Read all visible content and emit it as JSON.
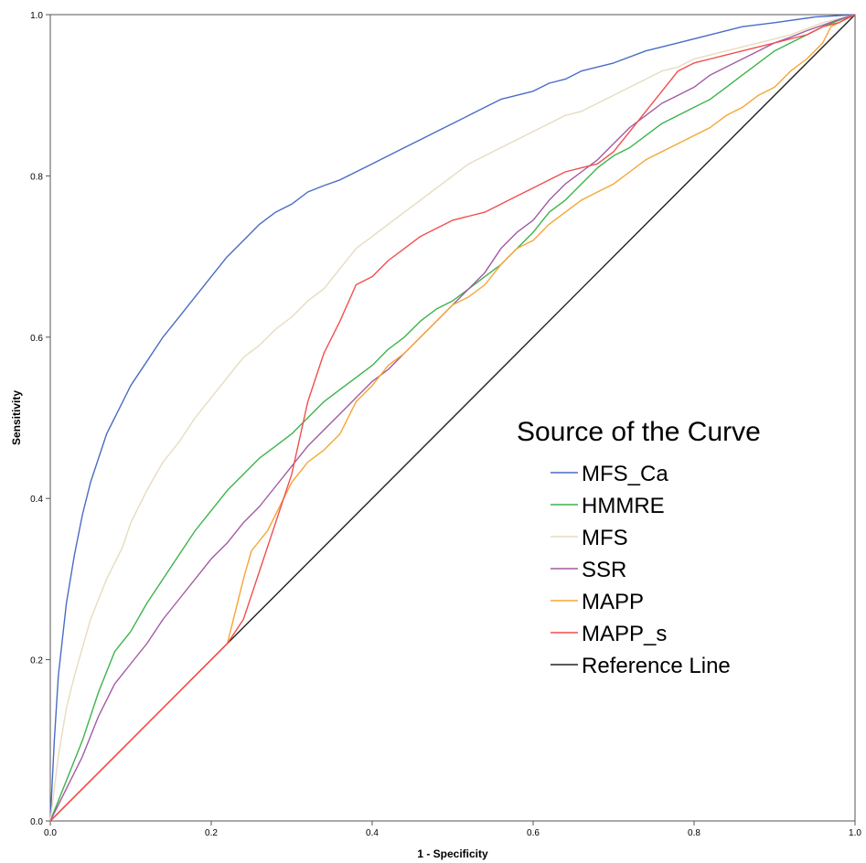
{
  "chart_data": {
    "type": "line",
    "title": "",
    "xlabel": "1 - Specificity",
    "ylabel": "Sensitivity",
    "xlim": [
      0,
      1
    ],
    "ylim": [
      0,
      1
    ],
    "xticks": [
      "0.0",
      "0.2",
      "0.4",
      "0.6",
      "0.8",
      "1.0"
    ],
    "yticks": [
      "0.0",
      "0.2",
      "0.4",
      "0.6",
      "0.8",
      "1.0"
    ],
    "grid": false,
    "legend": {
      "title": "Source of the Curve",
      "placement": "right"
    },
    "series": [
      {
        "name": "MFS_Ca",
        "color": "#4a6cc7",
        "points": [
          [
            0,
            0
          ],
          [
            0.005,
            0.1
          ],
          [
            0.01,
            0.18
          ],
          [
            0.02,
            0.27
          ],
          [
            0.03,
            0.33
          ],
          [
            0.04,
            0.38
          ],
          [
            0.05,
            0.42
          ],
          [
            0.06,
            0.45
          ],
          [
            0.07,
            0.48
          ],
          [
            0.08,
            0.5
          ],
          [
            0.09,
            0.52
          ],
          [
            0.1,
            0.54
          ],
          [
            0.12,
            0.57
          ],
          [
            0.14,
            0.6
          ],
          [
            0.16,
            0.625
          ],
          [
            0.18,
            0.65
          ],
          [
            0.2,
            0.675
          ],
          [
            0.22,
            0.7
          ],
          [
            0.24,
            0.72
          ],
          [
            0.26,
            0.74
          ],
          [
            0.28,
            0.755
          ],
          [
            0.3,
            0.765
          ],
          [
            0.32,
            0.78
          ],
          [
            0.34,
            0.788
          ],
          [
            0.36,
            0.795
          ],
          [
            0.38,
            0.805
          ],
          [
            0.4,
            0.815
          ],
          [
            0.42,
            0.825
          ],
          [
            0.44,
            0.835
          ],
          [
            0.46,
            0.845
          ],
          [
            0.48,
            0.855
          ],
          [
            0.5,
            0.865
          ],
          [
            0.52,
            0.875
          ],
          [
            0.54,
            0.885
          ],
          [
            0.56,
            0.895
          ],
          [
            0.58,
            0.9
          ],
          [
            0.6,
            0.905
          ],
          [
            0.62,
            0.915
          ],
          [
            0.64,
            0.92
          ],
          [
            0.66,
            0.93
          ],
          [
            0.68,
            0.935
          ],
          [
            0.7,
            0.94
          ],
          [
            0.74,
            0.955
          ],
          [
            0.78,
            0.965
          ],
          [
            0.82,
            0.975
          ],
          [
            0.86,
            0.985
          ],
          [
            0.9,
            0.99
          ],
          [
            0.95,
            0.997
          ],
          [
            1,
            1
          ]
        ]
      },
      {
        "name": "HMMRE",
        "color": "#3cb44b",
        "points": [
          [
            0,
            0
          ],
          [
            0.02,
            0.05
          ],
          [
            0.04,
            0.1
          ],
          [
            0.06,
            0.16
          ],
          [
            0.08,
            0.21
          ],
          [
            0.1,
            0.235
          ],
          [
            0.12,
            0.27
          ],
          [
            0.14,
            0.3
          ],
          [
            0.16,
            0.33
          ],
          [
            0.18,
            0.36
          ],
          [
            0.2,
            0.385
          ],
          [
            0.22,
            0.41
          ],
          [
            0.24,
            0.43
          ],
          [
            0.26,
            0.45
          ],
          [
            0.28,
            0.465
          ],
          [
            0.3,
            0.48
          ],
          [
            0.32,
            0.5
          ],
          [
            0.34,
            0.52
          ],
          [
            0.36,
            0.535
          ],
          [
            0.38,
            0.55
          ],
          [
            0.4,
            0.565
          ],
          [
            0.42,
            0.585
          ],
          [
            0.44,
            0.6
          ],
          [
            0.46,
            0.62
          ],
          [
            0.48,
            0.635
          ],
          [
            0.5,
            0.645
          ],
          [
            0.52,
            0.66
          ],
          [
            0.54,
            0.675
          ],
          [
            0.56,
            0.69
          ],
          [
            0.58,
            0.71
          ],
          [
            0.6,
            0.73
          ],
          [
            0.62,
            0.755
          ],
          [
            0.64,
            0.77
          ],
          [
            0.66,
            0.79
          ],
          [
            0.68,
            0.81
          ],
          [
            0.7,
            0.825
          ],
          [
            0.72,
            0.835
          ],
          [
            0.74,
            0.85
          ],
          [
            0.76,
            0.865
          ],
          [
            0.78,
            0.875
          ],
          [
            0.8,
            0.885
          ],
          [
            0.82,
            0.895
          ],
          [
            0.84,
            0.91
          ],
          [
            0.86,
            0.925
          ],
          [
            0.88,
            0.94
          ],
          [
            0.9,
            0.955
          ],
          [
            0.92,
            0.965
          ],
          [
            0.94,
            0.975
          ],
          [
            0.96,
            0.985
          ],
          [
            0.98,
            0.993
          ],
          [
            1,
            1
          ]
        ]
      },
      {
        "name": "MFS",
        "color": "#e6dcc0",
        "points": [
          [
            0,
            0
          ],
          [
            0.01,
            0.08
          ],
          [
            0.02,
            0.14
          ],
          [
            0.03,
            0.18
          ],
          [
            0.05,
            0.25
          ],
          [
            0.07,
            0.3
          ],
          [
            0.09,
            0.34
          ],
          [
            0.1,
            0.37
          ],
          [
            0.12,
            0.41
          ],
          [
            0.14,
            0.445
          ],
          [
            0.16,
            0.47
          ],
          [
            0.18,
            0.5
          ],
          [
            0.2,
            0.525
          ],
          [
            0.22,
            0.55
          ],
          [
            0.24,
            0.575
          ],
          [
            0.26,
            0.59
          ],
          [
            0.28,
            0.61
          ],
          [
            0.3,
            0.625
          ],
          [
            0.32,
            0.645
          ],
          [
            0.34,
            0.66
          ],
          [
            0.36,
            0.685
          ],
          [
            0.38,
            0.71
          ],
          [
            0.4,
            0.725
          ],
          [
            0.42,
            0.74
          ],
          [
            0.44,
            0.755
          ],
          [
            0.46,
            0.77
          ],
          [
            0.48,
            0.785
          ],
          [
            0.5,
            0.8
          ],
          [
            0.52,
            0.815
          ],
          [
            0.54,
            0.825
          ],
          [
            0.56,
            0.835
          ],
          [
            0.58,
            0.845
          ],
          [
            0.6,
            0.855
          ],
          [
            0.62,
            0.865
          ],
          [
            0.64,
            0.875
          ],
          [
            0.66,
            0.88
          ],
          [
            0.68,
            0.89
          ],
          [
            0.7,
            0.9
          ],
          [
            0.72,
            0.91
          ],
          [
            0.74,
            0.92
          ],
          [
            0.76,
            0.93
          ],
          [
            0.78,
            0.935
          ],
          [
            0.8,
            0.945
          ],
          [
            0.84,
            0.955
          ],
          [
            0.88,
            0.965
          ],
          [
            0.92,
            0.975
          ],
          [
            0.96,
            0.99
          ],
          [
            1,
            1
          ]
        ]
      },
      {
        "name": "SSR",
        "color": "#a35ba3",
        "points": [
          [
            0,
            0
          ],
          [
            0.02,
            0.04
          ],
          [
            0.04,
            0.08
          ],
          [
            0.06,
            0.13
          ],
          [
            0.08,
            0.17
          ],
          [
            0.1,
            0.195
          ],
          [
            0.12,
            0.22
          ],
          [
            0.14,
            0.25
          ],
          [
            0.16,
            0.275
          ],
          [
            0.18,
            0.3
          ],
          [
            0.2,
            0.325
          ],
          [
            0.22,
            0.345
          ],
          [
            0.24,
            0.37
          ],
          [
            0.26,
            0.39
          ],
          [
            0.28,
            0.415
          ],
          [
            0.3,
            0.44
          ],
          [
            0.32,
            0.465
          ],
          [
            0.34,
            0.485
          ],
          [
            0.36,
            0.505
          ],
          [
            0.38,
            0.525
          ],
          [
            0.4,
            0.545
          ],
          [
            0.42,
            0.56
          ],
          [
            0.44,
            0.58
          ],
          [
            0.46,
            0.6
          ],
          [
            0.48,
            0.62
          ],
          [
            0.5,
            0.64
          ],
          [
            0.52,
            0.66
          ],
          [
            0.54,
            0.68
          ],
          [
            0.56,
            0.71
          ],
          [
            0.58,
            0.73
          ],
          [
            0.6,
            0.745
          ],
          [
            0.62,
            0.77
          ],
          [
            0.64,
            0.79
          ],
          [
            0.66,
            0.805
          ],
          [
            0.68,
            0.82
          ],
          [
            0.7,
            0.84
          ],
          [
            0.72,
            0.86
          ],
          [
            0.74,
            0.875
          ],
          [
            0.76,
            0.89
          ],
          [
            0.78,
            0.9
          ],
          [
            0.8,
            0.91
          ],
          [
            0.82,
            0.925
          ],
          [
            0.84,
            0.935
          ],
          [
            0.86,
            0.945
          ],
          [
            0.88,
            0.955
          ],
          [
            0.9,
            0.965
          ],
          [
            0.92,
            0.972
          ],
          [
            0.94,
            0.98
          ],
          [
            0.96,
            0.987
          ],
          [
            0.98,
            0.994
          ],
          [
            1,
            1
          ]
        ]
      },
      {
        "name": "MAPP",
        "color": "#f7a533",
        "points": [
          [
            0,
            0
          ],
          [
            0.22,
            0.22
          ],
          [
            0.23,
            0.26
          ],
          [
            0.24,
            0.3
          ],
          [
            0.25,
            0.335
          ],
          [
            0.27,
            0.36
          ],
          [
            0.3,
            0.42
          ],
          [
            0.32,
            0.445
          ],
          [
            0.34,
            0.46
          ],
          [
            0.36,
            0.48
          ],
          [
            0.38,
            0.52
          ],
          [
            0.4,
            0.54
          ],
          [
            0.42,
            0.565
          ],
          [
            0.44,
            0.58
          ],
          [
            0.46,
            0.6
          ],
          [
            0.48,
            0.62
          ],
          [
            0.5,
            0.64
          ],
          [
            0.52,
            0.65
          ],
          [
            0.54,
            0.665
          ],
          [
            0.56,
            0.69
          ],
          [
            0.58,
            0.71
          ],
          [
            0.6,
            0.72
          ],
          [
            0.62,
            0.74
          ],
          [
            0.64,
            0.755
          ],
          [
            0.66,
            0.77
          ],
          [
            0.68,
            0.78
          ],
          [
            0.7,
            0.79
          ],
          [
            0.72,
            0.805
          ],
          [
            0.74,
            0.82
          ],
          [
            0.76,
            0.83
          ],
          [
            0.78,
            0.84
          ],
          [
            0.8,
            0.85
          ],
          [
            0.82,
            0.86
          ],
          [
            0.84,
            0.875
          ],
          [
            0.86,
            0.885
          ],
          [
            0.88,
            0.9
          ],
          [
            0.9,
            0.91
          ],
          [
            0.92,
            0.93
          ],
          [
            0.94,
            0.945
          ],
          [
            0.96,
            0.965
          ],
          [
            0.97,
            0.985
          ],
          [
            0.98,
            0.99
          ],
          [
            1,
            1
          ]
        ]
      },
      {
        "name": "MAPP_s",
        "color": "#f24e4e",
        "points": [
          [
            0,
            0
          ],
          [
            0.22,
            0.22
          ],
          [
            0.24,
            0.25
          ],
          [
            0.26,
            0.31
          ],
          [
            0.27,
            0.34
          ],
          [
            0.3,
            0.43
          ],
          [
            0.32,
            0.52
          ],
          [
            0.34,
            0.58
          ],
          [
            0.36,
            0.62
          ],
          [
            0.38,
            0.665
          ],
          [
            0.4,
            0.675
          ],
          [
            0.42,
            0.695
          ],
          [
            0.44,
            0.71
          ],
          [
            0.46,
            0.725
          ],
          [
            0.48,
            0.735
          ],
          [
            0.5,
            0.745
          ],
          [
            0.52,
            0.75
          ],
          [
            0.54,
            0.755
          ],
          [
            0.56,
            0.765
          ],
          [
            0.58,
            0.775
          ],
          [
            0.6,
            0.785
          ],
          [
            0.62,
            0.795
          ],
          [
            0.64,
            0.805
          ],
          [
            0.66,
            0.81
          ],
          [
            0.68,
            0.815
          ],
          [
            0.7,
            0.83
          ],
          [
            0.72,
            0.855
          ],
          [
            0.74,
            0.88
          ],
          [
            0.76,
            0.905
          ],
          [
            0.78,
            0.93
          ],
          [
            0.8,
            0.94
          ],
          [
            0.82,
            0.945
          ],
          [
            0.84,
            0.95
          ],
          [
            0.86,
            0.955
          ],
          [
            0.88,
            0.96
          ],
          [
            0.9,
            0.965
          ],
          [
            0.92,
            0.97
          ],
          [
            0.94,
            0.975
          ],
          [
            0.96,
            0.985
          ],
          [
            0.98,
            0.99
          ],
          [
            1,
            1
          ]
        ]
      },
      {
        "name": "Reference Line",
        "color": "#222222",
        "points": [
          [
            0,
            0
          ],
          [
            1,
            1
          ]
        ]
      }
    ]
  }
}
